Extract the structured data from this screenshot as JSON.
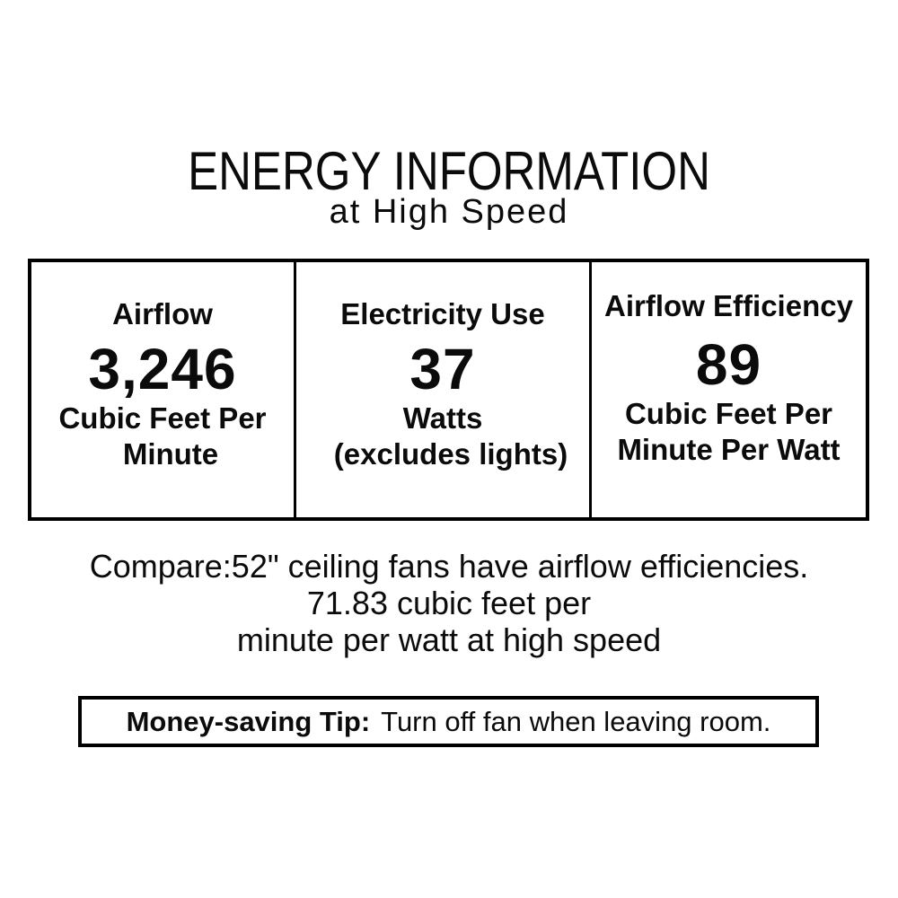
{
  "title": "ENERGY INFORMATION",
  "subtitle": "at High Speed",
  "table": {
    "columns": [
      {
        "label": "Airflow",
        "value": "3,246",
        "unit_lines": [
          "Cubic Feet Per",
          "Minute"
        ]
      },
      {
        "label": "Electricity Use",
        "value": "37",
        "unit_lines": [
          "Watts",
          "(excludes lights)"
        ]
      },
      {
        "label": "Airflow Efficiency",
        "value": "89",
        "unit_lines": [
          "Cubic Feet Per",
          "Minute Per Watt"
        ]
      }
    ]
  },
  "compare": {
    "lines": [
      "Compare:52\" ceiling fans have airflow efficiencies.",
      "71.83 cubic feet per",
      "minute per watt at high speed"
    ]
  },
  "tip": {
    "label": "Money-saving Tip:",
    "text": "Turn off fan when leaving room."
  },
  "colors": {
    "background": "#ffffff",
    "text": "#0b0b0b",
    "border": "#000000"
  }
}
